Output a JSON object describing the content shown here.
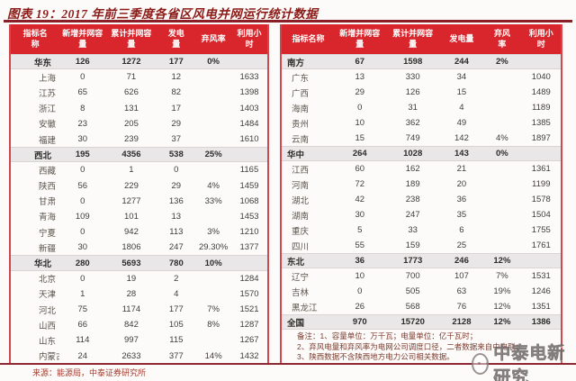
{
  "title": "图表 19：2017 年前三季度各省区风电并网运行统计数据",
  "header_labels_left": [
    "指标名\n称",
    "新增并网容\n量",
    "累计并网容\n量",
    "发电\n量",
    "弃风率",
    "利用小\n时"
  ],
  "header_labels_right": [
    "指标名称",
    "新增并网容\n量",
    "累计并网容\n量",
    "发电量",
    "弃风\n率",
    "利用小\n时"
  ],
  "left_table": {
    "rows": [
      {
        "type": "region",
        "name": "华东",
        "new_cap": "126",
        "cum_cap": "1272",
        "gen": "177",
        "curtail": "0%",
        "hours": ""
      },
      {
        "type": "province",
        "name": "上海",
        "new_cap": "0",
        "cum_cap": "71",
        "gen": "12",
        "curtail": "",
        "hours": "1633"
      },
      {
        "type": "province",
        "name": "江苏",
        "new_cap": "65",
        "cum_cap": "626",
        "gen": "82",
        "curtail": "",
        "hours": "1398"
      },
      {
        "type": "province",
        "name": "浙江",
        "new_cap": "8",
        "cum_cap": "131",
        "gen": "17",
        "curtail": "",
        "hours": "1403"
      },
      {
        "type": "province",
        "name": "安徽",
        "new_cap": "23",
        "cum_cap": "205",
        "gen": "29",
        "curtail": "",
        "hours": "1484"
      },
      {
        "type": "province",
        "name": "福建",
        "new_cap": "30",
        "cum_cap": "239",
        "gen": "37",
        "curtail": "",
        "hours": "1610"
      },
      {
        "type": "region",
        "name": "西北",
        "new_cap": "195",
        "cum_cap": "4356",
        "gen": "538",
        "curtail": "25%",
        "hours": ""
      },
      {
        "type": "province",
        "name": "西藏",
        "new_cap": "0",
        "cum_cap": "1",
        "gen": "0",
        "curtail": "",
        "hours": "1165"
      },
      {
        "type": "province",
        "name": "陕西",
        "new_cap": "56",
        "cum_cap": "229",
        "gen": "29",
        "curtail": "4%",
        "hours": "1459"
      },
      {
        "type": "province",
        "name": "甘肃",
        "new_cap": "0",
        "cum_cap": "1277",
        "gen": "136",
        "curtail": "33%",
        "hours": "1068"
      },
      {
        "type": "province",
        "name": "青海",
        "new_cap": "109",
        "cum_cap": "101",
        "gen": "13",
        "curtail": "",
        "hours": "1453"
      },
      {
        "type": "province",
        "name": "宁夏",
        "new_cap": "0",
        "cum_cap": "942",
        "gen": "113",
        "curtail": "3%",
        "hours": "1210"
      },
      {
        "type": "province",
        "name": "新疆",
        "new_cap": "30",
        "cum_cap": "1806",
        "gen": "247",
        "curtail": "29.30%",
        "hours": "1377"
      },
      {
        "type": "region",
        "name": "华北",
        "new_cap": "280",
        "cum_cap": "5693",
        "gen": "780",
        "curtail": "10%",
        "hours": ""
      },
      {
        "type": "province",
        "name": "北京",
        "new_cap": "0",
        "cum_cap": "19",
        "gen": "2",
        "curtail": "",
        "hours": "1284"
      },
      {
        "type": "province",
        "name": "天津",
        "new_cap": "1",
        "cum_cap": "28",
        "gen": "4",
        "curtail": "",
        "hours": "1570"
      },
      {
        "type": "province",
        "name": "河北",
        "new_cap": "75",
        "cum_cap": "1174",
        "gen": "177",
        "curtail": "7%",
        "hours": "1521"
      },
      {
        "type": "province",
        "name": "山西",
        "new_cap": "66",
        "cum_cap": "842",
        "gen": "105",
        "curtail": "8%",
        "hours": "1287"
      },
      {
        "type": "province",
        "name": "山东",
        "new_cap": "114",
        "cum_cap": "997",
        "gen": "115",
        "curtail": "",
        "hours": "1267"
      },
      {
        "type": "province",
        "name": "内蒙古",
        "new_cap": "24",
        "cum_cap": "2633",
        "gen": "377",
        "curtail": "14%",
        "hours": "1432"
      }
    ]
  },
  "right_table": {
    "rows": [
      {
        "type": "region",
        "name": "南方",
        "new_cap": "67",
        "cum_cap": "1598",
        "gen": "244",
        "curtail": "2%",
        "hours": ""
      },
      {
        "type": "province",
        "name": "广东",
        "new_cap": "13",
        "cum_cap": "330",
        "gen": "34",
        "curtail": "",
        "hours": "1040"
      },
      {
        "type": "province",
        "name": "广西",
        "new_cap": "29",
        "cum_cap": "126",
        "gen": "15",
        "curtail": "",
        "hours": "1489"
      },
      {
        "type": "province",
        "name": "海南",
        "new_cap": "0",
        "cum_cap": "31",
        "gen": "4",
        "curtail": "",
        "hours": "1189"
      },
      {
        "type": "province",
        "name": "贵州",
        "new_cap": "10",
        "cum_cap": "362",
        "gen": "49",
        "curtail": "",
        "hours": "1385"
      },
      {
        "type": "province",
        "name": "云南",
        "new_cap": "15",
        "cum_cap": "749",
        "gen": "142",
        "curtail": "4%",
        "hours": "1897"
      },
      {
        "type": "region",
        "name": "华中",
        "new_cap": "264",
        "cum_cap": "1028",
        "gen": "143",
        "curtail": "0%",
        "hours": ""
      },
      {
        "type": "province",
        "name": "江西",
        "new_cap": "60",
        "cum_cap": "162",
        "gen": "21",
        "curtail": "",
        "hours": "1361"
      },
      {
        "type": "province",
        "name": "河南",
        "new_cap": "72",
        "cum_cap": "189",
        "gen": "20",
        "curtail": "",
        "hours": "1199"
      },
      {
        "type": "province",
        "name": "湖北",
        "new_cap": "42",
        "cum_cap": "238",
        "gen": "36",
        "curtail": "",
        "hours": "1578"
      },
      {
        "type": "province",
        "name": "湖南",
        "new_cap": "30",
        "cum_cap": "247",
        "gen": "35",
        "curtail": "",
        "hours": "1504"
      },
      {
        "type": "province",
        "name": "重庆",
        "new_cap": "5",
        "cum_cap": "33",
        "gen": "6",
        "curtail": "",
        "hours": "1755"
      },
      {
        "type": "province",
        "name": "四川",
        "new_cap": "55",
        "cum_cap": "159",
        "gen": "25",
        "curtail": "",
        "hours": "1761"
      },
      {
        "type": "region",
        "name": "东北",
        "new_cap": "36",
        "cum_cap": "1773",
        "gen": "246",
        "curtail": "12%",
        "hours": ""
      },
      {
        "type": "province",
        "name": "辽宁",
        "new_cap": "10",
        "cum_cap": "700",
        "gen": "107",
        "curtail": "7%",
        "hours": "1531"
      },
      {
        "type": "province",
        "name": "吉林",
        "new_cap": "0",
        "cum_cap": "505",
        "gen": "63",
        "curtail": "19%",
        "hours": "1246"
      },
      {
        "type": "province",
        "name": "黑龙江",
        "new_cap": "26",
        "cum_cap": "568",
        "gen": "76",
        "curtail": "12%",
        "hours": "1351"
      },
      {
        "type": "region",
        "name": "全国",
        "new_cap": "970",
        "cum_cap": "15720",
        "gen": "2128",
        "curtail": "12%",
        "hours": "1386"
      }
    ]
  },
  "notes": {
    "line1": "备注：1、容量单位：万千瓦；电量单位：亿千瓦时；",
    "line2": "2、弃风电量和弃风率为电网公司调度口径，二者数据来自中电联；",
    "line3": "3、陕西数据不含陕西地方电力公司相关数据。"
  },
  "source": "来源：能源局，中泰证券研究所",
  "watermark": "中泰电新研究",
  "colors": {
    "header_bg": "#d9262c",
    "title_red": "#8c1a16",
    "rule_red": "#8e2733",
    "region_row_bg": "#e9e7e7",
    "table_border_red": "#d0484d"
  }
}
